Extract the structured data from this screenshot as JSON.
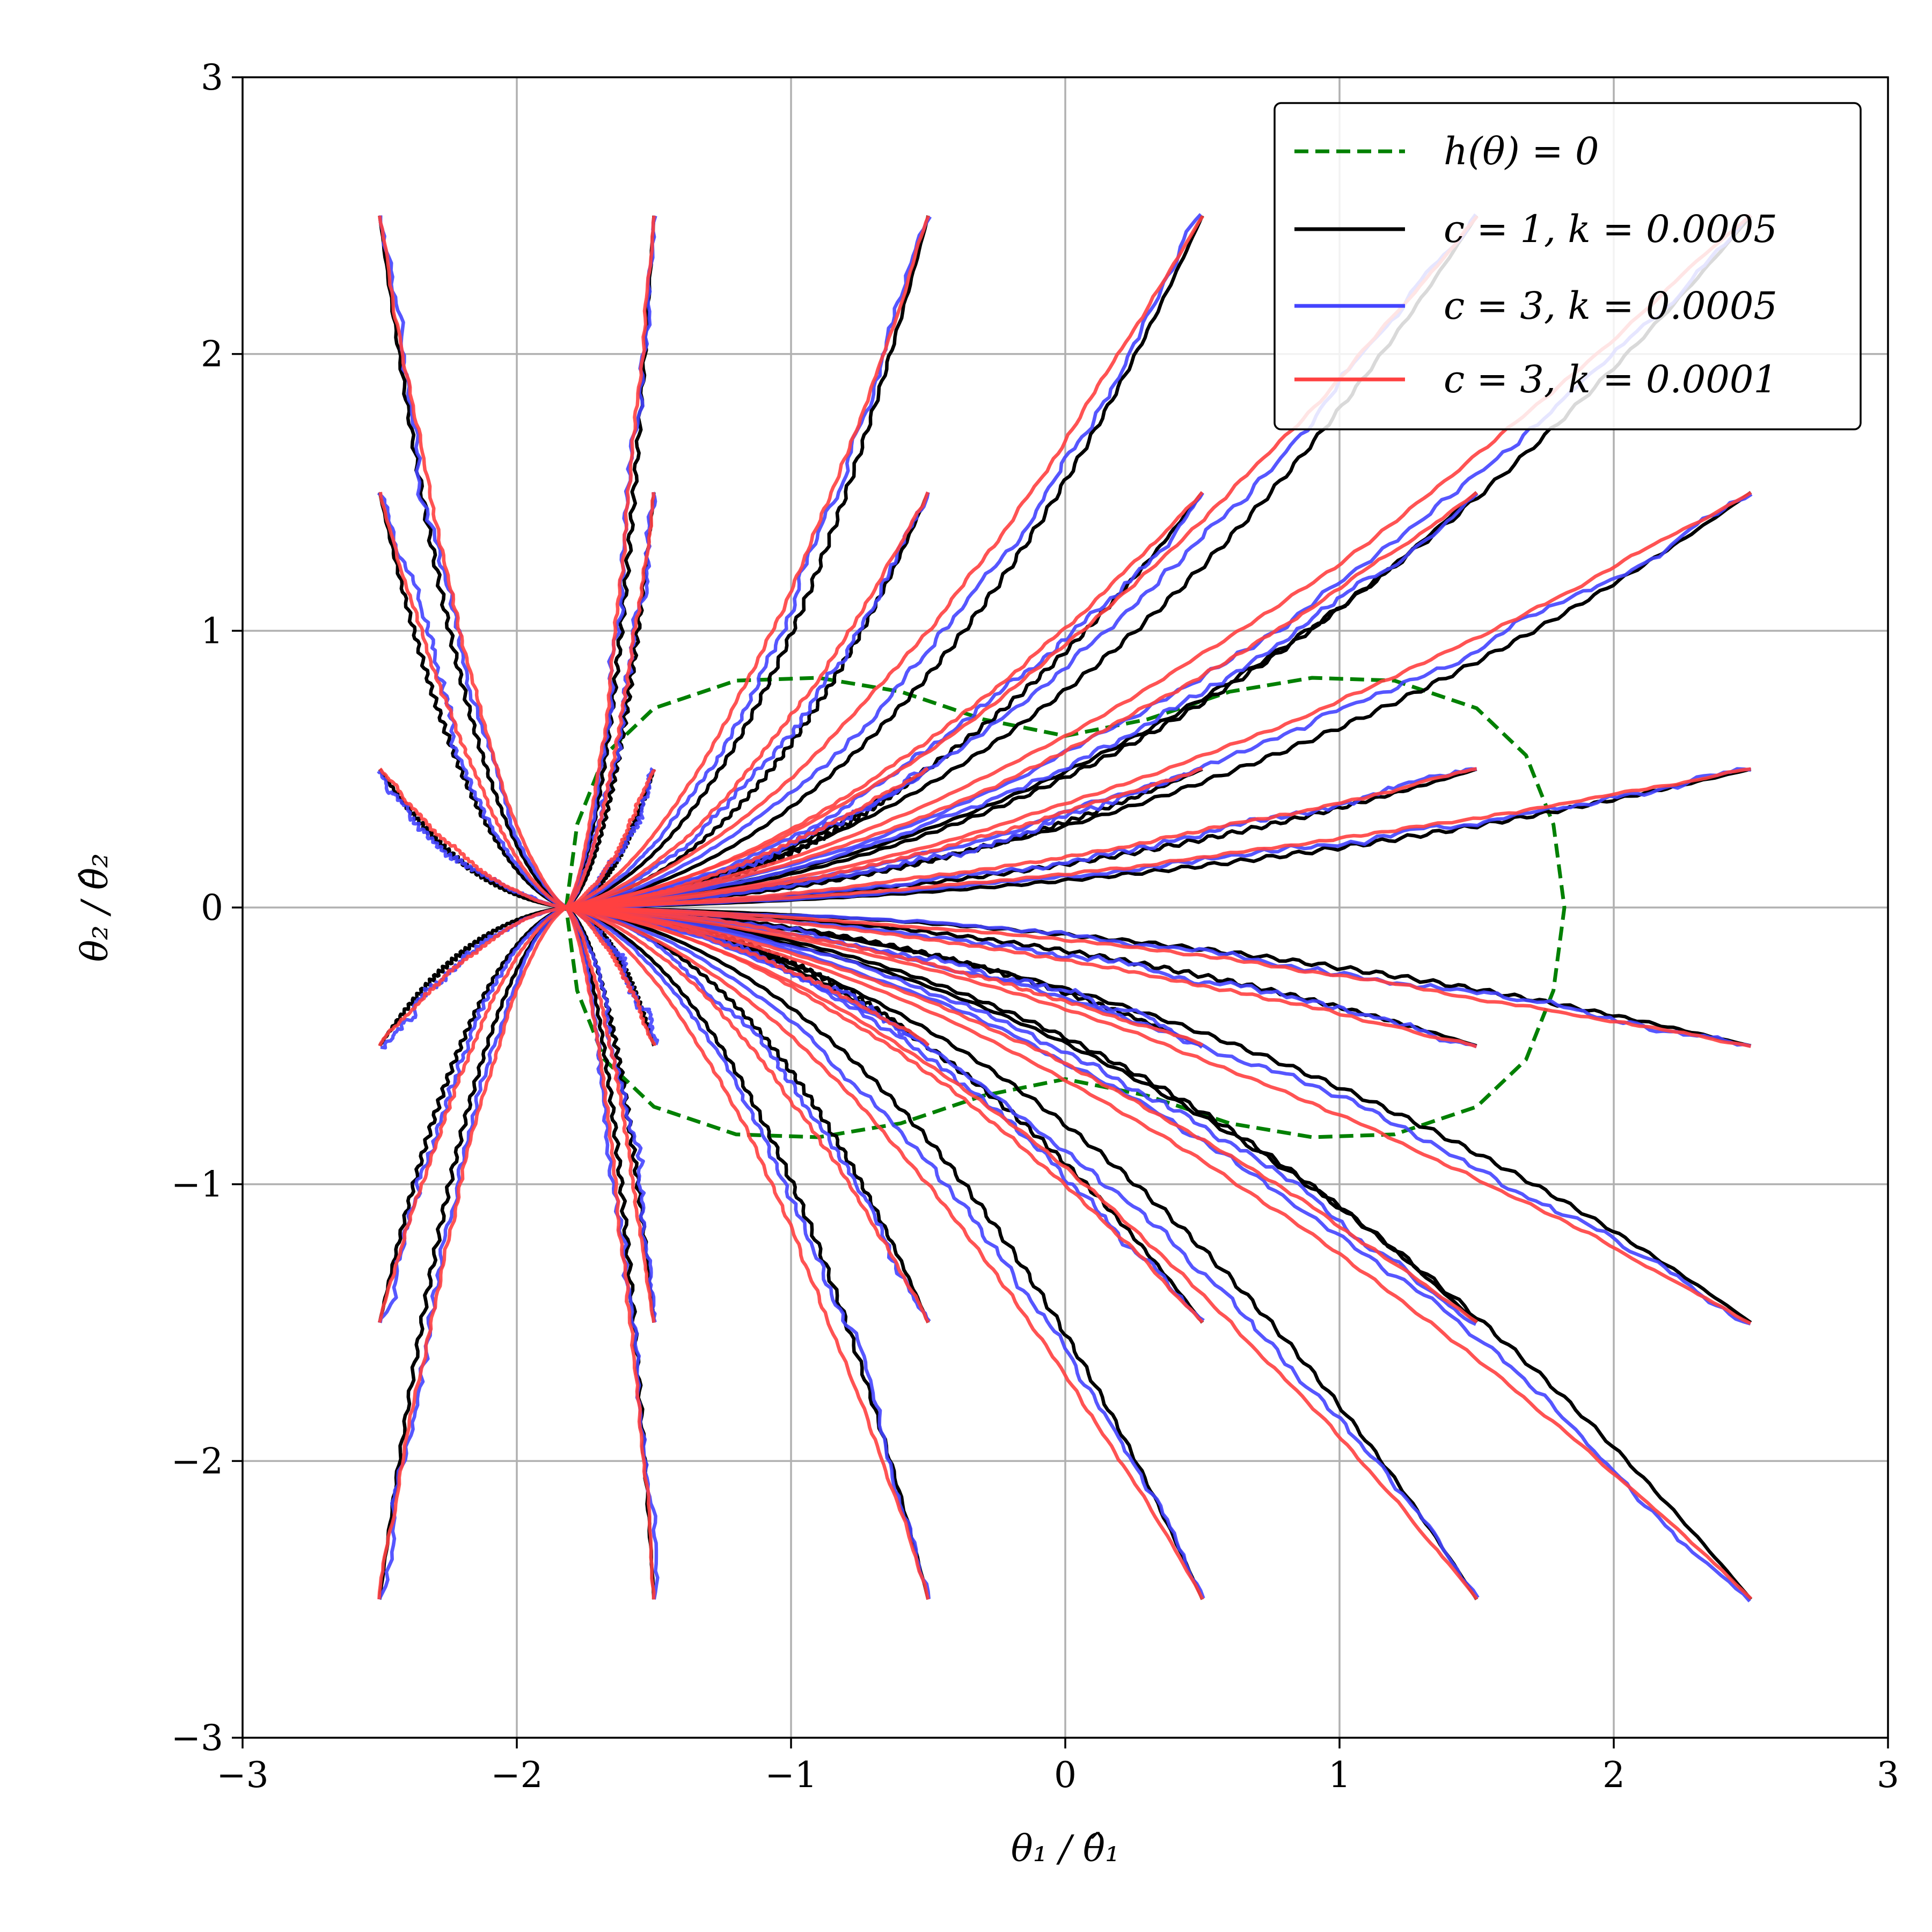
{
  "chart_data": {
    "type": "line",
    "xlabel": "θ₁ / θ̂₁",
    "ylabel": "θ₂ / θ̂₂",
    "xlim": [
      -3,
      3
    ],
    "ylim": [
      -3,
      3
    ],
    "xticks": [
      "−3",
      "−2",
      "−1",
      "0",
      "1",
      "2",
      "3"
    ],
    "yticks": [
      "−3",
      "−2",
      "−1",
      "0",
      "1",
      "2",
      "3"
    ],
    "xtick_values": [
      -3,
      -2,
      -1,
      0,
      1,
      2,
      3
    ],
    "ytick_values": [
      -3,
      -2,
      -1,
      0,
      1,
      2,
      3
    ],
    "grid": true,
    "legend_position": "top-right",
    "constraint_curve": {
      "name": "h(θ) = 0",
      "color": "#008000",
      "style": "dashed",
      "points": [
        [
          -1.82,
          0.0
        ],
        [
          -1.78,
          0.3
        ],
        [
          -1.68,
          0.55
        ],
        [
          -1.5,
          0.72
        ],
        [
          -1.2,
          0.82
        ],
        [
          -0.9,
          0.83
        ],
        [
          -0.6,
          0.78
        ],
        [
          -0.3,
          0.68
        ],
        [
          0.0,
          0.62
        ],
        [
          0.3,
          0.68
        ],
        [
          0.6,
          0.78
        ],
        [
          0.9,
          0.83
        ],
        [
          1.2,
          0.82
        ],
        [
          1.5,
          0.72
        ],
        [
          1.68,
          0.55
        ],
        [
          1.78,
          0.3
        ],
        [
          1.82,
          0.0
        ],
        [
          1.78,
          -0.3
        ],
        [
          1.68,
          -0.55
        ],
        [
          1.5,
          -0.72
        ],
        [
          1.2,
          -0.82
        ],
        [
          0.9,
          -0.83
        ],
        [
          0.6,
          -0.78
        ],
        [
          0.3,
          -0.68
        ],
        [
          0.0,
          -0.62
        ],
        [
          -0.3,
          -0.68
        ],
        [
          -0.6,
          -0.78
        ],
        [
          -0.9,
          -0.83
        ],
        [
          -1.2,
          -0.82
        ],
        [
          -1.5,
          -0.72
        ],
        [
          -1.68,
          -0.55
        ],
        [
          -1.78,
          -0.3
        ],
        [
          -1.82,
          0.0
        ]
      ]
    },
    "target_point": [
      -1.82,
      0.0
    ],
    "start_points": [
      [
        -2.5,
        2.5
      ],
      [
        -1.5,
        2.5
      ],
      [
        -0.5,
        2.5
      ],
      [
        0.5,
        2.5
      ],
      [
        -2.5,
        1.5
      ],
      [
        -1.5,
        1.5
      ],
      [
        -0.5,
        1.5
      ],
      [
        0.5,
        1.5
      ],
      [
        1.5,
        1.5
      ],
      [
        2.5,
        1.5
      ],
      [
        -2.5,
        0.5
      ],
      [
        -1.5,
        0.5
      ],
      [
        -0.5,
        0.5
      ],
      [
        0.5,
        0.5
      ],
      [
        1.5,
        0.5
      ],
      [
        2.5,
        0.5
      ],
      [
        -2.5,
        -0.5
      ],
      [
        -1.5,
        -0.5
      ],
      [
        -0.5,
        -0.5
      ],
      [
        0.5,
        -0.5
      ],
      [
        1.5,
        -0.5
      ],
      [
        2.5,
        -0.5
      ],
      [
        -2.5,
        -1.5
      ],
      [
        -1.5,
        -1.5
      ],
      [
        -0.5,
        -1.5
      ],
      [
        0.5,
        -1.5
      ],
      [
        1.5,
        -1.5
      ],
      [
        2.5,
        -1.5
      ],
      [
        -2.5,
        -2.5
      ],
      [
        -1.5,
        -2.5
      ],
      [
        -0.5,
        -2.5
      ],
      [
        0.5,
        -2.5
      ],
      [
        1.5,
        -2.5
      ],
      [
        2.5,
        -2.5
      ],
      [
        1.5,
        2.5
      ],
      [
        2.5,
        2.5
      ]
    ],
    "series": [
      {
        "name": "c = 1, k = 0.0005",
        "color": "#000000",
        "wiggle": 0.6,
        "noise": 0.0,
        "bend": 0.0
      },
      {
        "name": "c = 3, k = 0.0005",
        "color": "#4444ff",
        "wiggle": 0.45,
        "noise": 1.0,
        "bend": 0.06
      },
      {
        "name": "c = 3, k = 0.0001",
        "color": "#ff4040",
        "wiggle": 0.25,
        "noise": 0.35,
        "bend": 0.12
      }
    ]
  },
  "legend": [
    {
      "label": "h(θ) = 0",
      "color": "#008000",
      "style": "dashed"
    },
    {
      "label": "c = 1, k = 0.0005",
      "color": "#000000",
      "style": "solid"
    },
    {
      "label": "c = 3, k = 0.0005",
      "color": "#4444ff",
      "style": "solid"
    },
    {
      "label": "c = 3, k = 0.0001",
      "color": "#ff4040",
      "style": "solid"
    }
  ]
}
